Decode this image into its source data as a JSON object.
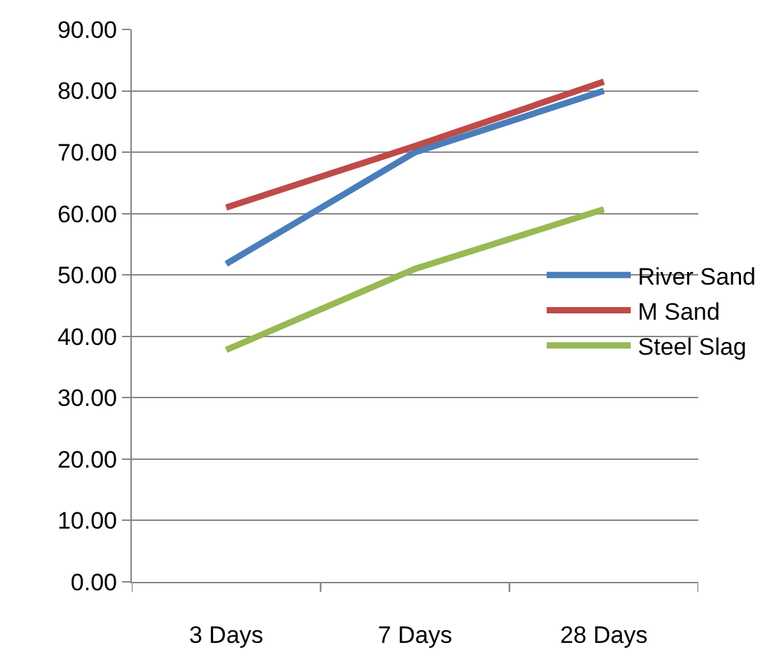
{
  "chart_data": {
    "type": "line",
    "categories": [
      "3 Days",
      "7 Days",
      "28 Days"
    ],
    "series": [
      {
        "name": "River Sand",
        "color": "#4a7ebb",
        "values": [
          51.8,
          70.0,
          80.0
        ]
      },
      {
        "name": "M Sand",
        "color": "#be4b48",
        "values": [
          61.0,
          71.0,
          81.5
        ]
      },
      {
        "name": "Steel Slag",
        "color": "#98b954",
        "values": [
          37.8,
          51.0,
          60.7
        ]
      }
    ],
    "ylim": [
      0,
      90
    ],
    "yticks": [
      {
        "value": 0,
        "label": "0.00"
      },
      {
        "value": 10,
        "label": "10.00"
      },
      {
        "value": 20,
        "label": "20.00"
      },
      {
        "value": 30,
        "label": "30.00"
      },
      {
        "value": 40,
        "label": "40.00"
      },
      {
        "value": 50,
        "label": "50.00"
      },
      {
        "value": 60,
        "label": "60.00"
      },
      {
        "value": 70,
        "label": "70.00"
      },
      {
        "value": 80,
        "label": "80.00"
      },
      {
        "value": 90,
        "label": "90.00"
      }
    ],
    "grid": "y",
    "legend": "right",
    "marker": "none",
    "line_style": "solid"
  }
}
